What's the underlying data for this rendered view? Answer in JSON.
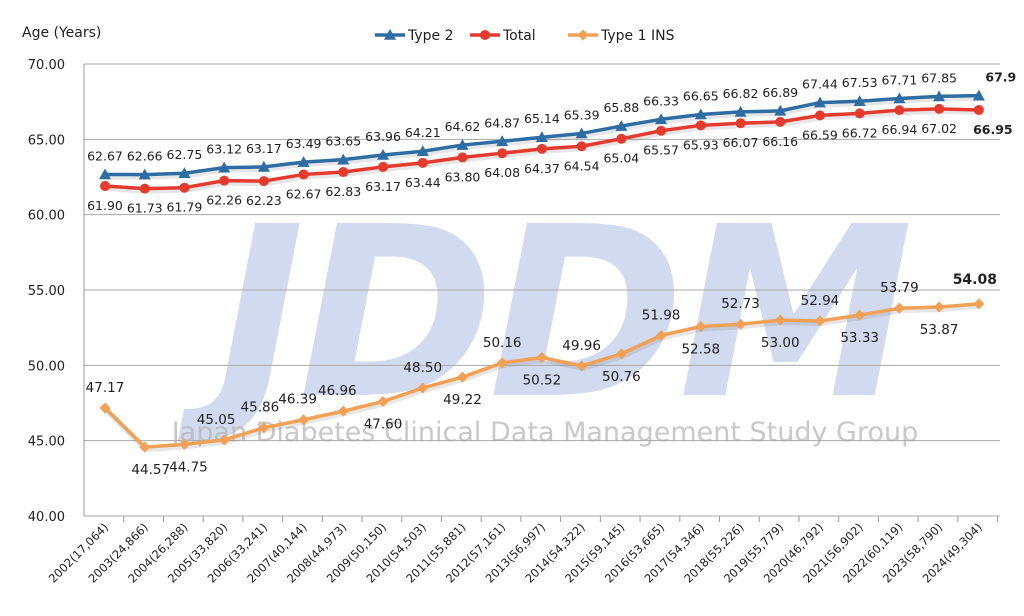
{
  "chart_data": {
    "type": "line",
    "ylabel": "Age (Years)",
    "ylim": [
      40,
      70
    ],
    "yticks": [
      "40.00",
      "45.00",
      "50.00",
      "55.00",
      "60.00",
      "65.00",
      "70.00"
    ],
    "grid": "horizontal",
    "legend_position": "top-center",
    "categories": [
      "2002(17,064)",
      "2003(24,866)",
      "2004(26,288)",
      "2005(33,820)",
      "2006(33,241)",
      "2007(40,144)",
      "2008(44,973)",
      "2009(50,150)",
      "2010(54,503)",
      "2011(55,881)",
      "2012(57,161)",
      "2013(56,997)",
      "2014(54,322)",
      "2015(59,145)",
      "2016(53,665)",
      "2017(54,346)",
      "2018(55,226)",
      "2019(55,779)",
      "2020(46,792)",
      "2021(56,902)",
      "2022(60,119)",
      "2023(58,790)",
      "2024(49,304)"
    ],
    "series": [
      {
        "name": "Type 2",
        "color": "#2e6da4",
        "marker": "triangle",
        "start_index": 0,
        "values": [
          62.67,
          62.66,
          62.75,
          63.12,
          63.17,
          63.49,
          63.65,
          63.96,
          64.21,
          64.62,
          64.87,
          65.14,
          65.39,
          65.88,
          66.33,
          66.65,
          66.82,
          66.89,
          67.44,
          67.53,
          67.71,
          67.85,
          67.9
        ],
        "labels": [
          "62.67",
          "62.66",
          "62.75",
          "63.12",
          "63.17",
          "63.49",
          "63.65",
          "63.96",
          "64.21",
          "64.62",
          "64.87",
          "65.14",
          "65.39",
          "65.88",
          "66.33",
          "66.65",
          "66.82",
          "66.89",
          "67.44",
          "67.53",
          "67.71",
          "67.85",
          "67.9"
        ]
      },
      {
        "name": "Total",
        "color": "#e53a2e",
        "marker": "circle",
        "start_index": 0,
        "values": [
          61.9,
          61.73,
          61.79,
          62.26,
          62.23,
          62.67,
          62.83,
          63.17,
          63.44,
          63.8,
          64.08,
          64.37,
          64.54,
          65.04,
          65.57,
          65.93,
          66.07,
          66.16,
          66.59,
          66.72,
          66.94,
          67.02,
          66.95
        ],
        "labels": [
          "61.90",
          "61.73",
          "61.79",
          "62.26",
          "62.23",
          "62.67",
          "62.83",
          "63.17",
          "63.44",
          "63.80",
          "64.08",
          "64.37",
          "64.54",
          "65.04",
          "65.57",
          "65.93",
          "66.07",
          "66.16",
          "66.59",
          "66.72",
          "66.94",
          "67.02",
          "66.95"
        ]
      },
      {
        "name": "Type 1 INS",
        "color": "#f2a055",
        "marker": "diamond",
        "start_index": 0,
        "values": [
          47.17,
          44.57,
          44.75,
          45.05,
          45.86,
          46.39,
          46.96,
          47.6,
          48.5,
          49.22,
          50.16,
          50.52,
          49.96,
          50.76,
          51.98,
          52.58,
          52.73,
          53.0,
          52.94,
          53.33,
          53.79,
          53.87,
          54.08
        ],
        "labels": [
          "47.17",
          "44.57",
          "44.75",
          "45.05",
          "45.86",
          "46.39",
          "46.96",
          "47.60",
          "48.50",
          "49.22",
          "50.16",
          "50.52",
          "49.96",
          "50.76",
          "51.98",
          "52.58",
          "52.73",
          "53.00",
          "52.94",
          "53.33",
          "53.79",
          "53.87",
          "54.08"
        ]
      }
    ],
    "watermark": {
      "logo": "JDDM",
      "text": "Japan Diabetes Clinical Data Management Study Group"
    }
  }
}
